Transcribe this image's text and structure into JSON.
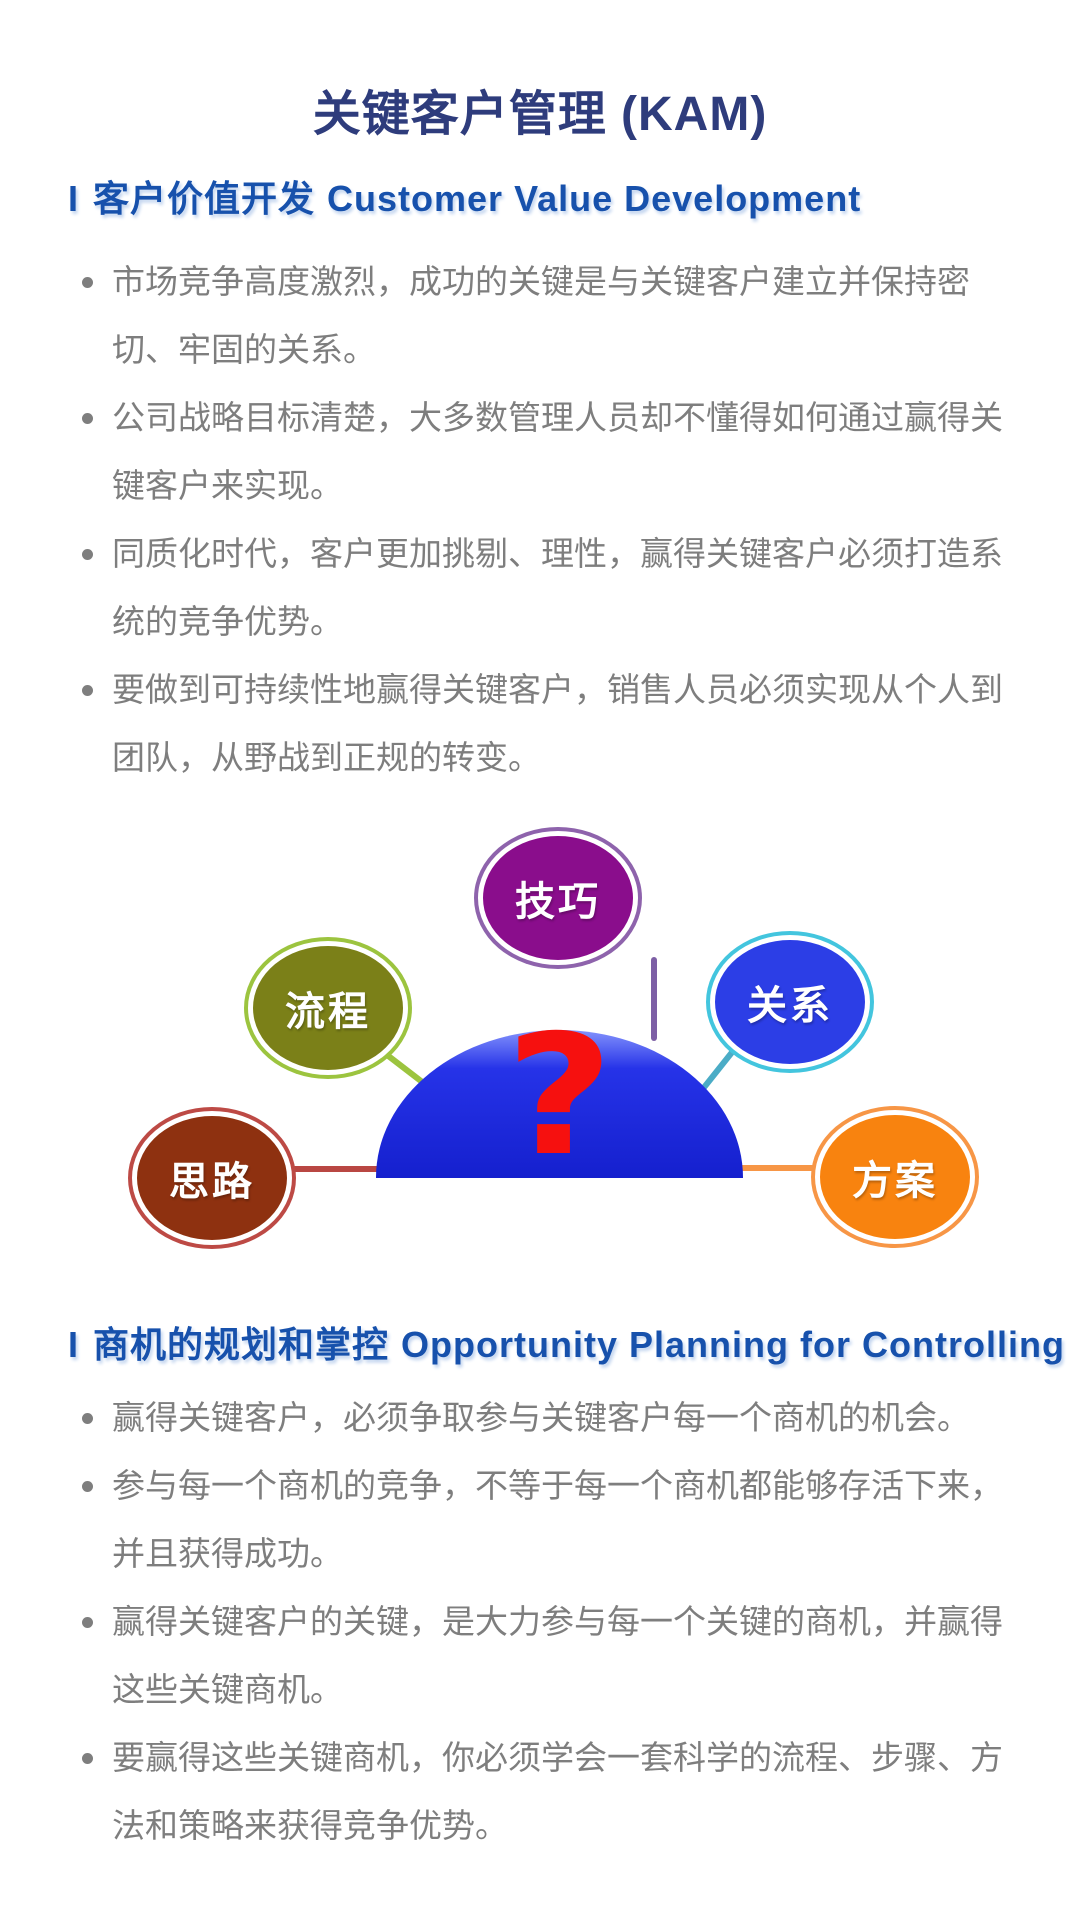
{
  "page_title": "关键客户管理 (KAM)",
  "colors": {
    "title": "#2E3C7C",
    "section_heading": "#1751AC",
    "body_text": "#7E7E7E",
    "background": "#FFFFFF"
  },
  "sections": [
    {
      "prefix": "I",
      "title_zh": "客户价值开发",
      "title_en": "Customer Value Development",
      "bullets": [
        "市场竞争高度激烈，成功的关键是与关键客户建立并保持密切、牢固的关系。",
        "公司战略目标清楚，大多数管理人员却不懂得如何通过赢得关键客户来实现。",
        "同质化时代，客户更加挑剔、理性，赢得关键客户必须打造系统的竞争优势。",
        "要做到可持续性地赢得关键客户，销售人员必须实现从个人到团队，从野战到正规的转变。"
      ]
    },
    {
      "prefix": "I",
      "title_zh": "商机的规划和掌控",
      "title_en": "Opportunity Planning for Controlling",
      "bullets": [
        "赢得关键客户，必须争取参与关键客户每一个商机的机会。",
        "参与每一个商机的竞争，不等于每一个商机都能够存活下来，并且获得成功。",
        "赢得关键客户的关键，是大力参与每一个关键的商机，并赢得这些关键商机。",
        "要赢得这些关键商机，你必须学会一套科学的流程、步骤、方法和策略来获得竞争优势。"
      ]
    }
  ],
  "diagram": {
    "dome": {
      "question_mark": "?",
      "question_color": "#F6100F",
      "rim": "#8392FC",
      "main": "#2633E8",
      "deep": "#1520CE"
    },
    "bubbles": [
      {
        "label": "技巧",
        "fill": "#8A0D8C",
        "ring": "#8E63AC",
        "connector": "#7D5FA5"
      },
      {
        "label": "流程",
        "fill": "#7B8018",
        "ring": "#9CC43F",
        "connector": "#9CC43F"
      },
      {
        "label": "关系",
        "fill": "#2C3EE6",
        "ring": "#43C5DE",
        "connector": "#4BACC6"
      },
      {
        "label": "思路",
        "fill": "#8E3110",
        "ring": "#BD4A45",
        "connector": "#B94743"
      },
      {
        "label": "方案",
        "fill": "#F8830F",
        "ring": "#F79646",
        "connector": "#F79646"
      }
    ]
  }
}
